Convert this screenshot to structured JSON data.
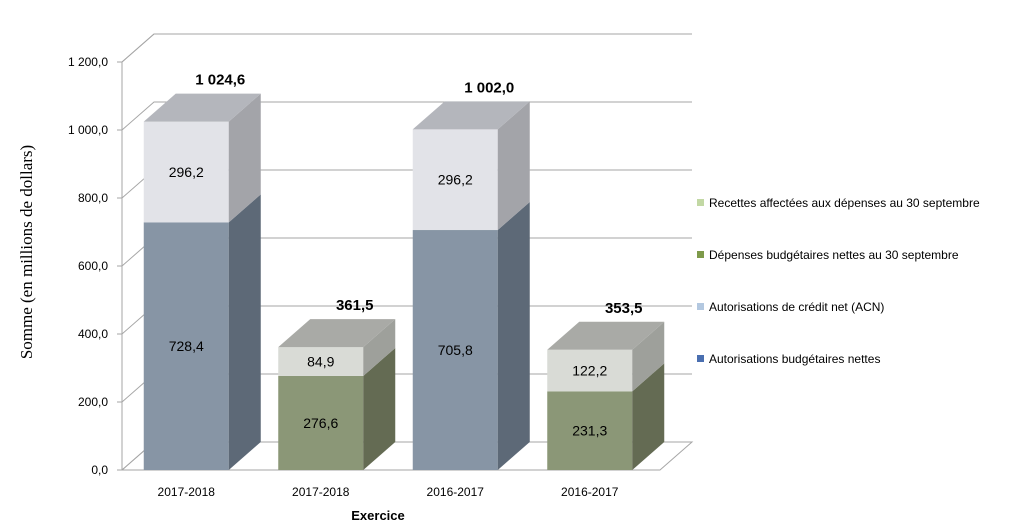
{
  "chart_data": {
    "type": "bar",
    "stacked": true,
    "three_d": true,
    "title": "",
    "xlabel": "Exercice",
    "ylabel": "Somme (en millions de dollars)",
    "ylim": [
      0,
      1200
    ],
    "ytick_step": 200,
    "ytick_labels": [
      "0,0",
      "200,0",
      "400,0",
      "600,0",
      "800,0",
      "1 000,0",
      "1 200,0"
    ],
    "grid": true,
    "legend_position": "right",
    "categories": [
      "2017-2018",
      "2017-2018",
      "2016-2017",
      "2016-2017"
    ],
    "totals": [
      1024.6,
      361.5,
      1002.0,
      353.5
    ],
    "total_labels": [
      "1 024,6",
      "361,5",
      "1 002,0",
      "353,5"
    ],
    "bars": [
      {
        "segments": [
          {
            "series": "Autorisations budgétaires nettes",
            "value": 728.4,
            "label": "728,4"
          },
          {
            "series": "Autorisations de crédit net (ACN)",
            "value": 296.2,
            "label": "296,2"
          }
        ]
      },
      {
        "segments": [
          {
            "series": "Dépenses budgétaires nettes au 30 septembre",
            "value": 276.6,
            "label": "276,6"
          },
          {
            "series": "Recettes affectées aux dépenses au 30 septembre",
            "value": 84.9,
            "label": "84,9"
          }
        ]
      },
      {
        "segments": [
          {
            "series": "Autorisations budgétaires nettes",
            "value": 705.8,
            "label": "705,8"
          },
          {
            "series": "Autorisations de crédit net (ACN)",
            "value": 296.2,
            "label": "296,2"
          }
        ]
      },
      {
        "segments": [
          {
            "series": "Dépenses budgétaires nettes au 30 septembre",
            "value": 231.3,
            "label": "231,3"
          },
          {
            "series": "Recettes affectées aux dépenses au 30 septembre",
            "value": 122.2,
            "label": "122,2"
          }
        ]
      }
    ],
    "series": [
      {
        "name": "Autorisations budgétaires nettes",
        "legend_color": "#4a6fb0",
        "front": "#8795a5",
        "top": "#adb8c3",
        "side": "#5d6977"
      },
      {
        "name": "Autorisations de crédit net (ACN)",
        "legend_color": "#b3c8e0",
        "front": "#e2e3e8",
        "top": "#b4b6bc",
        "side": "#a3a4a9"
      },
      {
        "name": "Dépenses budgétaires nettes au 30 septembre",
        "legend_color": "#7e9a4a",
        "front": "#8b9777",
        "top": "#adb59b",
        "side": "#646b53"
      },
      {
        "name": "Recettes affectées aux dépenses au 30 septembre",
        "legend_color": "#c2d8a4",
        "front": "#d9dbd6",
        "top": "#a9aaa6",
        "side": "#9ea09b"
      }
    ],
    "legend_order": [
      "Recettes affectées aux dépenses au 30 septembre",
      "Dépenses budgétaires nettes au 30 septembre",
      "Autorisations de crédit net (ACN)",
      "Autorisations budgétaires nettes"
    ]
  }
}
